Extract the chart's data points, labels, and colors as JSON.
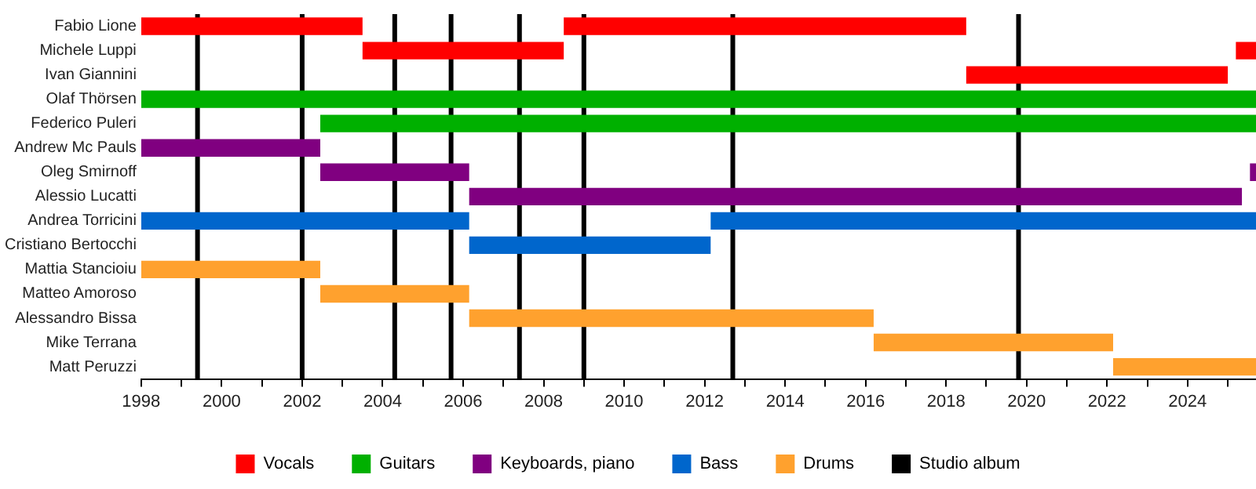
{
  "chart_data": {
    "type": "bar",
    "orientation": "horizontal",
    "categories": [
      "Fabio Lione",
      "Michele Luppi",
      "Ivan Giannini",
      "Olaf Thörsen",
      "Federico Puleri",
      "Andrew Mc Pauls",
      "Oleg Smirnoff",
      "Alessio Lucatti",
      "Andrea Torricini",
      "Cristiano Bertocchi",
      "Mattia Stancioiu",
      "Matteo Amoroso",
      "Alessandro Bissa",
      "Mike Terrana",
      "Matt Peruzzi"
    ],
    "series": [
      {
        "name": "Vocals",
        "color": "#ff0000",
        "base": [
          1998,
          2003.5,
          2018.5,
          null,
          null,
          null,
          null,
          null,
          null,
          null,
          null,
          null,
          null,
          null,
          null
        ],
        "values": [
          5.5,
          5.0,
          6.5,
          null,
          null,
          null,
          null,
          null,
          null,
          null,
          null,
          null,
          null,
          null,
          null
        ]
      },
      {
        "color": "#ff0000",
        "base": [
          2008.5,
          2025.2,
          null,
          null,
          null,
          null,
          null,
          null,
          null,
          null,
          null,
          null,
          null,
          null,
          null
        ],
        "values": [
          10.0,
          0.5,
          null,
          null,
          null,
          null,
          null,
          null,
          null,
          null,
          null,
          null,
          null,
          null,
          null
        ]
      },
      {
        "name": "Guitars",
        "color": "#00b000",
        "base": [
          null,
          null,
          null,
          1998,
          2002.45,
          null,
          null,
          null,
          null,
          null,
          null,
          null,
          null,
          null,
          null
        ],
        "values": [
          null,
          null,
          null,
          27.7,
          23.25,
          null,
          null,
          null,
          null,
          null,
          null,
          null,
          null,
          null,
          null
        ]
      },
      {
        "name": "Keyboards, piano",
        "color": "#800080",
        "base": [
          null,
          null,
          null,
          null,
          null,
          1998,
          2002.45,
          2006.15,
          null,
          null,
          null,
          null,
          null,
          null,
          null
        ],
        "values": [
          null,
          null,
          null,
          null,
          null,
          4.45,
          3.7,
          19.2,
          null,
          null,
          null,
          null,
          null,
          null,
          null
        ]
      },
      {
        "color": "#800080",
        "base": [
          null,
          null,
          null,
          null,
          null,
          null,
          2025.55,
          null,
          null,
          null,
          null,
          null,
          null,
          null,
          null
        ],
        "values": [
          null,
          null,
          null,
          null,
          null,
          null,
          0.15,
          null,
          null,
          null,
          null,
          null,
          null,
          null,
          null
        ]
      },
      {
        "name": "Bass",
        "color": "#0066cc",
        "base": [
          null,
          null,
          null,
          null,
          null,
          null,
          null,
          null,
          1998,
          2006.15,
          null,
          null,
          null,
          null,
          null
        ],
        "values": [
          null,
          null,
          null,
          null,
          null,
          null,
          null,
          null,
          8.15,
          6.0,
          null,
          null,
          null,
          null,
          null
        ]
      },
      {
        "color": "#0066cc",
        "base": [
          null,
          null,
          null,
          null,
          null,
          null,
          null,
          null,
          2012.15,
          null,
          null,
          null,
          null,
          null,
          null
        ],
        "values": [
          null,
          null,
          null,
          null,
          null,
          null,
          null,
          null,
          13.55,
          null,
          null,
          null,
          null,
          null,
          null
        ]
      },
      {
        "name": "Drums",
        "color": "#ffa12e",
        "base": [
          null,
          null,
          null,
          null,
          null,
          null,
          null,
          null,
          null,
          null,
          1998,
          2002.45,
          2006.15,
          2016.2,
          2022.15
        ],
        "values": [
          null,
          null,
          null,
          null,
          null,
          null,
          null,
          null,
          null,
          null,
          4.45,
          3.7,
          10.05,
          5.95,
          3.55
        ]
      }
    ],
    "xlim": [
      1998,
      2025.7
    ],
    "xticks": [
      1998,
      {
        "value": 1999,
        "label": null
      },
      2000,
      {
        "value": 2001,
        "label": null
      },
      2002,
      {
        "value": 2003,
        "label": null
      },
      2004,
      {
        "value": 2005,
        "label": null
      },
      2006,
      {
        "value": 2007,
        "label": null
      },
      2008,
      {
        "value": 2009,
        "label": null
      },
      2010,
      {
        "value": 2011,
        "label": null
      },
      2012,
      {
        "value": 2013,
        "label": null
      },
      2014,
      {
        "value": 2015,
        "label": null
      },
      2016,
      {
        "value": 2017,
        "label": null
      },
      2018,
      {
        "value": 2019,
        "label": null
      },
      2020,
      {
        "value": 2021,
        "label": null
      },
      2022,
      {
        "value": 2023,
        "label": null
      },
      2024,
      {
        "value": 2025,
        "label": null
      }
    ],
    "ref_lines": [
      {
        "axis": "x",
        "value": 1999.4,
        "label": "Studio album",
        "color": "#000000"
      },
      {
        "axis": "x",
        "value": 2002.0,
        "color": "#000000"
      },
      {
        "axis": "x",
        "value": 2004.3,
        "color": "#000000"
      },
      {
        "axis": "x",
        "value": 2005.7,
        "color": "#000000"
      },
      {
        "axis": "x",
        "value": 2007.4,
        "color": "#000000"
      },
      {
        "axis": "x",
        "value": 2009.0,
        "color": "#000000"
      },
      {
        "axis": "x",
        "value": 2012.7,
        "color": "#000000"
      },
      {
        "axis": "x",
        "value": 2019.8,
        "color": "#000000"
      }
    ],
    "grid": false,
    "legend": "bottom"
  }
}
